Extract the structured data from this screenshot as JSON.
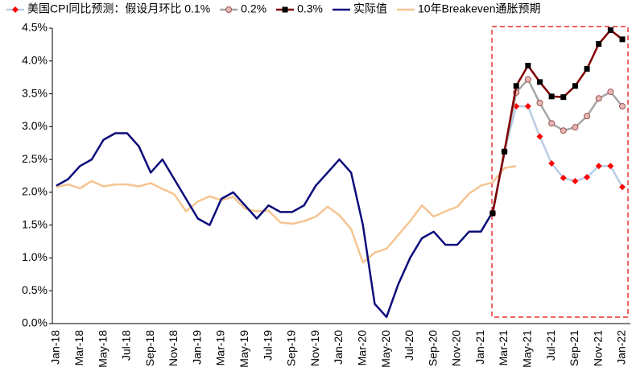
{
  "chart_data": {
    "type": "line",
    "categories": [
      "Jan-18",
      null,
      "Mar-18",
      null,
      "May-18",
      null,
      "Jul-18",
      null,
      "Sep-18",
      null,
      "Nov-18",
      null,
      "Jan-19",
      null,
      "Mar-19",
      null,
      "May-19",
      null,
      "Jul-19",
      null,
      "Sep-19",
      null,
      "Nov-19",
      null,
      "Jan-20",
      null,
      "Mar-20",
      null,
      "May-20",
      null,
      "Jul-20",
      null,
      "Sep-20",
      null,
      "Nov-20",
      null,
      "Jan-21",
      null,
      "Mar-21",
      null,
      "May-21",
      null,
      "Jul-21",
      null,
      "Sep-21",
      null,
      "Nov-21",
      null,
      "Jan-22"
    ],
    "series": [
      {
        "name": "美国CPI同比预测：假设月环比 0.1%",
        "color": "#b9cde5",
        "marker": "diamond",
        "marker_color": "#ff0000",
        "values": [
          null,
          null,
          null,
          null,
          null,
          null,
          null,
          null,
          null,
          null,
          null,
          null,
          null,
          null,
          null,
          null,
          null,
          null,
          null,
          null,
          null,
          null,
          null,
          null,
          null,
          null,
          null,
          null,
          null,
          null,
          null,
          null,
          null,
          null,
          null,
          null,
          null,
          1.68,
          2.62,
          3.31,
          3.31,
          2.85,
          2.44,
          2.22,
          2.17,
          2.23,
          2.4,
          2.4,
          2.08
        ]
      },
      {
        "name": "0.2%",
        "color": "#a6a6a6",
        "marker": "circle",
        "marker_color": "#e6b9b8",
        "values": [
          null,
          null,
          null,
          null,
          null,
          null,
          null,
          null,
          null,
          null,
          null,
          null,
          null,
          null,
          null,
          null,
          null,
          null,
          null,
          null,
          null,
          null,
          null,
          null,
          null,
          null,
          null,
          null,
          null,
          null,
          null,
          null,
          null,
          null,
          null,
          null,
          null,
          1.68,
          2.62,
          3.52,
          3.72,
          3.36,
          3.05,
          2.94,
          2.99,
          3.16,
          3.43,
          3.53,
          3.31
        ]
      },
      {
        "name": "0.3%",
        "color": "#7f0000",
        "marker": "square",
        "marker_color": "#000000",
        "values": [
          null,
          null,
          null,
          null,
          null,
          null,
          null,
          null,
          null,
          null,
          null,
          null,
          null,
          null,
          null,
          null,
          null,
          null,
          null,
          null,
          null,
          null,
          null,
          null,
          null,
          null,
          null,
          null,
          null,
          null,
          null,
          null,
          null,
          null,
          null,
          null,
          null,
          1.68,
          2.62,
          3.62,
          3.93,
          3.68,
          3.46,
          3.45,
          3.62,
          3.88,
          4.26,
          4.47,
          4.33
        ]
      },
      {
        "name": "实际值",
        "color": "#0c0c7a",
        "marker": null,
        "values": [
          2.1,
          2.2,
          2.4,
          2.5,
          2.8,
          2.9,
          2.9,
          2.7,
          2.3,
          2.5,
          2.2,
          1.9,
          1.6,
          1.5,
          1.9,
          2.0,
          1.8,
          1.6,
          1.8,
          1.7,
          1.7,
          1.8,
          2.1,
          2.3,
          2.5,
          2.3,
          1.5,
          0.3,
          0.1,
          0.6,
          1.0,
          1.3,
          1.4,
          1.2,
          1.2,
          1.4,
          1.4,
          1.7,
          2.6,
          null,
          null,
          null,
          null,
          null,
          null,
          null,
          null,
          null,
          null
        ]
      },
      {
        "name": "10年Breakeven通胀预期",
        "color": "#f5c592",
        "marker": null,
        "values": [
          2.08,
          2.12,
          2.06,
          2.17,
          2.09,
          2.12,
          2.12,
          2.09,
          2.14,
          2.05,
          1.97,
          1.71,
          1.86,
          1.94,
          1.88,
          1.93,
          1.75,
          1.71,
          1.72,
          1.54,
          1.52,
          1.56,
          1.63,
          1.78,
          1.65,
          1.44,
          0.93,
          1.08,
          1.14,
          1.35,
          1.56,
          1.8,
          1.63,
          1.71,
          1.78,
          1.98,
          2.1,
          2.15,
          2.37,
          2.4,
          null,
          null,
          null,
          null,
          null,
          null,
          null,
          null,
          null
        ]
      }
    ],
    "ylim": [
      0,
      4.5
    ],
    "yticks": [
      {
        "value": 0,
        "label": "0.0%"
      },
      {
        "value": 0.5,
        "label": "0.5%"
      },
      {
        "value": 1,
        "label": "1.0%"
      },
      {
        "value": 1.5,
        "label": "1.5%"
      },
      {
        "value": 2,
        "label": "2.0%"
      },
      {
        "value": 2.5,
        "label": "2.5%"
      },
      {
        "value": 3,
        "label": "3.0%"
      },
      {
        "value": 3.5,
        "label": "3.5%"
      },
      {
        "value": 4,
        "label": "4.0%"
      },
      {
        "value": 4.5,
        "label": "4.5%"
      }
    ],
    "grid": false
  }
}
